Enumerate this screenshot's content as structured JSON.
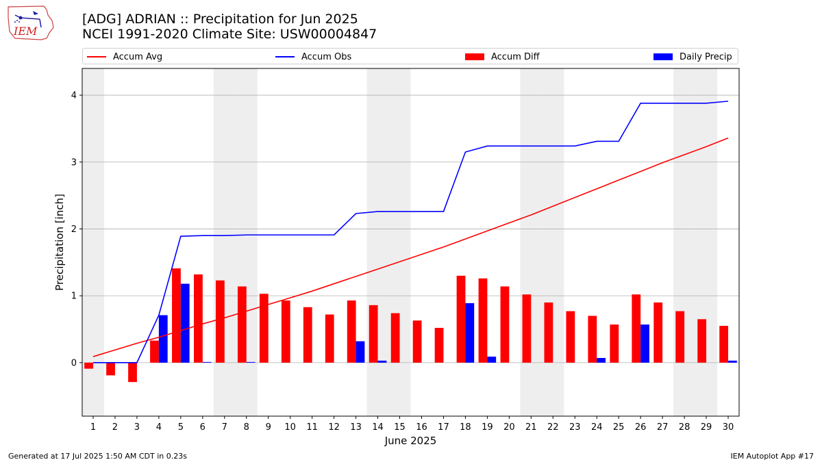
{
  "title_line1": "[ADG] ADRIAN :: Precipitation for Jun 2025",
  "title_line2": "NCEI 1991-2020 Climate Site: USW00004847",
  "logo_text": "IEM",
  "footer_left": "Generated at 17 Jul 2025 1:50 AM CDT in 0.23s",
  "footer_right": "IEM Autoplot App #17",
  "colors": {
    "accum_avg": "#ff0000",
    "accum_obs": "#0000ff",
    "accum_diff": "#ff0000",
    "daily_precip": "#0000ff",
    "weekend_shade": "#eeeeee",
    "grid": "#b0b0b0"
  },
  "chart_data": {
    "type": "bar",
    "xlabel": "June 2025",
    "ylabel": "Precipitation [inch]",
    "ylim": [
      -0.8,
      4.4
    ],
    "yticks": [
      0,
      1,
      2,
      3,
      4
    ],
    "xlim": [
      0.5,
      30.5
    ],
    "grid": "horizontal",
    "legend_placement": "top",
    "days": [
      1,
      2,
      3,
      4,
      5,
      6,
      7,
      8,
      9,
      10,
      11,
      12,
      13,
      14,
      15,
      16,
      17,
      18,
      19,
      20,
      21,
      22,
      23,
      24,
      25,
      26,
      27,
      28,
      29,
      30
    ],
    "weekend_days": [
      1,
      7,
      8,
      14,
      15,
      21,
      22,
      28,
      29
    ],
    "series": [
      {
        "name": "Accum Avg",
        "kind": "line",
        "values": [
          0.09,
          0.19,
          0.29,
          0.38,
          0.48,
          0.58,
          0.67,
          0.77,
          0.87,
          0.97,
          1.07,
          1.18,
          1.29,
          1.4,
          1.51,
          1.62,
          1.73,
          1.85,
          1.97,
          2.09,
          2.21,
          2.34,
          2.47,
          2.6,
          2.73,
          2.86,
          2.99,
          3.11,
          3.23,
          3.36
        ]
      },
      {
        "name": "Accum Obs",
        "kind": "line",
        "values": [
          0.0,
          0.0,
          0.0,
          0.71,
          1.89,
          1.9,
          1.9,
          1.91,
          1.91,
          1.91,
          1.91,
          1.91,
          2.23,
          2.26,
          2.26,
          2.26,
          2.26,
          3.15,
          3.24,
          3.24,
          3.24,
          3.24,
          3.24,
          3.31,
          3.31,
          3.88,
          3.88,
          3.88,
          3.88,
          3.91
        ]
      },
      {
        "name": "Accum Diff",
        "kind": "bar",
        "values": [
          -0.09,
          -0.19,
          -0.29,
          0.33,
          1.41,
          1.32,
          1.23,
          1.14,
          1.03,
          0.93,
          0.83,
          0.72,
          0.93,
          0.86,
          0.74,
          0.63,
          0.52,
          1.3,
          1.26,
          1.14,
          1.02,
          0.9,
          0.77,
          0.7,
          0.57,
          1.02,
          0.9,
          0.77,
          0.65,
          0.55
        ]
      },
      {
        "name": "Daily Precip",
        "kind": "bar",
        "values": [
          0.0,
          0.0,
          0.0,
          0.71,
          1.18,
          0.01,
          0.0,
          0.01,
          0.0,
          0.0,
          0.0,
          0.0,
          0.32,
          0.03,
          0.0,
          0.0,
          0.0,
          0.89,
          0.09,
          0.0,
          0.0,
          0.0,
          0.0,
          0.07,
          0.0,
          0.57,
          0.0,
          0.0,
          0.0,
          0.03
        ]
      }
    ]
  }
}
